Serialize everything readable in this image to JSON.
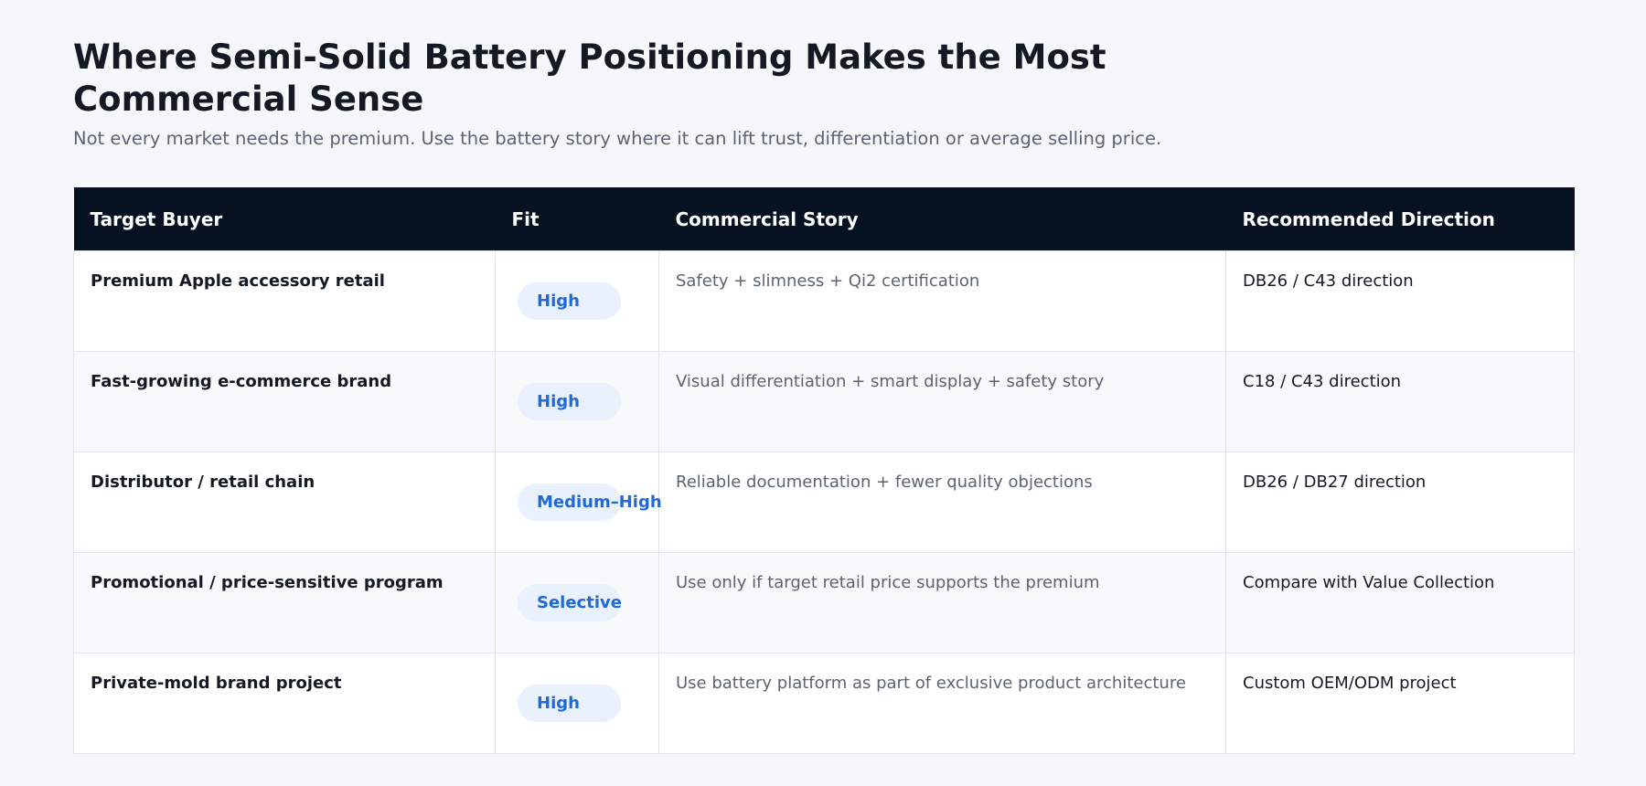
{
  "header": {
    "title": "Where Semi-Solid Battery Positioning Makes the Most Commercial Sense",
    "subtitle": "Not every market needs the premium. Use the battery story where it can lift trust, differentiation or average selling price."
  },
  "table": {
    "columns": [
      "Target Buyer",
      "Fit",
      "Commercial Story",
      "Recommended Direction"
    ],
    "rows": [
      {
        "buyer": "Premium Apple accessory retail",
        "fit": "High",
        "story": "Safety + slimness + Qi2 certification",
        "direction": "DB26 / C43 direction"
      },
      {
        "buyer": "Fast-growing e-commerce brand",
        "fit": "High",
        "story": "Visual differentiation + smart display + safety story",
        "direction": "C18 / C43 direction"
      },
      {
        "buyer": "Distributor / retail chain",
        "fit": "Medium–High",
        "story": "Reliable documentation + fewer quality objections",
        "direction": "DB26 / DB27 direction"
      },
      {
        "buyer": "Promotional / price-sensitive program",
        "fit": "Selective",
        "story": "Use only if target retail price supports the premium",
        "direction": "Compare with Value Collection"
      },
      {
        "buyer": "Private-mold brand project",
        "fit": "High",
        "story": "Use battery platform as part of exclusive product architecture",
        "direction": "Custom OEM/ODM project"
      }
    ]
  }
}
